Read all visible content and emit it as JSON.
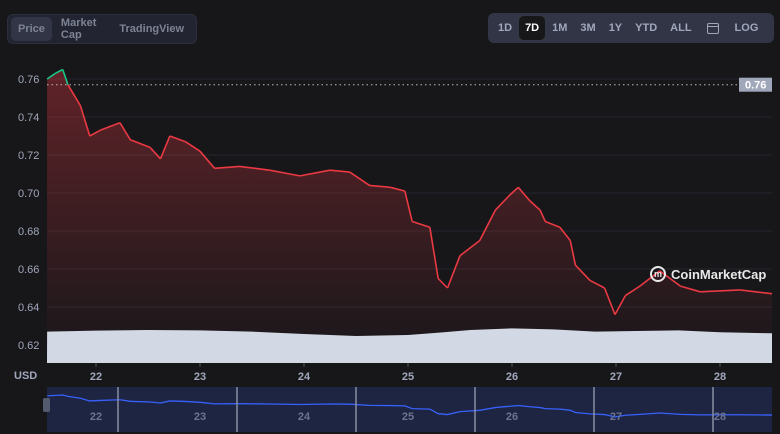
{
  "tabs": [
    {
      "label": "Price",
      "active": true
    },
    {
      "label": "Market Cap",
      "active": false
    },
    {
      "label": "TradingView",
      "active": false
    }
  ],
  "ranges": [
    {
      "label": "1D"
    },
    {
      "label": "7D",
      "active": true
    },
    {
      "label": "1M"
    },
    {
      "label": "3M"
    },
    {
      "label": "1Y"
    },
    {
      "label": "YTD"
    },
    {
      "label": "ALL"
    }
  ],
  "calendar_icon": "calendar-icon",
  "log_label": "LOG",
  "watermark": "CoinMarketCap",
  "currency_label": "USD",
  "current_price_label": "0.76",
  "colors": {
    "up": "#16c784",
    "down": "#ea3943",
    "volume": "#d3d9e4",
    "navigator": "#3861fb"
  },
  "chart_data": {
    "type": "line",
    "ylabel": "USD",
    "yticks": [
      "0.62",
      "0.64",
      "0.66",
      "0.68",
      "0.70",
      "0.72",
      "0.74",
      "0.76"
    ],
    "ylim": [
      0.615,
      0.765
    ],
    "xticks": [
      "22",
      "23",
      "24",
      "25",
      "26",
      "27",
      "28"
    ],
    "xlim": [
      21.53,
      28.5
    ],
    "grid": true,
    "reference_line": 0.757,
    "series": [
      {
        "x": [
          21.53,
          21.61,
          21.68,
          21.73,
          21.85,
          21.94,
          22.04,
          22.23,
          22.33,
          22.52,
          22.62,
          22.71,
          22.86,
          23.0,
          23.14,
          23.38,
          23.67,
          23.96,
          24.25,
          24.44,
          24.63,
          24.83,
          24.97,
          25.04,
          25.21,
          25.29,
          25.38,
          25.5,
          25.69,
          25.84,
          25.98,
          26.06,
          26.17,
          26.27,
          26.32,
          26.46,
          26.56,
          26.61,
          26.75,
          26.89,
          26.99,
          27.09,
          27.23,
          27.42,
          27.62,
          27.81,
          28.19,
          28.5
        ],
        "y": [
          0.76,
          0.763,
          0.765,
          0.757,
          0.746,
          0.73,
          0.733,
          0.737,
          0.728,
          0.724,
          0.718,
          0.73,
          0.727,
          0.722,
          0.713,
          0.714,
          0.712,
          0.709,
          0.712,
          0.711,
          0.704,
          0.703,
          0.701,
          0.685,
          0.682,
          0.655,
          0.65,
          0.667,
          0.675,
          0.691,
          0.699,
          0.703,
          0.696,
          0.691,
          0.685,
          0.682,
          0.675,
          0.662,
          0.654,
          0.65,
          0.636,
          0.646,
          0.651,
          0.659,
          0.651,
          0.648,
          0.649,
          0.647
        ]
      }
    ],
    "volume_relative": {
      "x": [
        21.53,
        22.0,
        22.5,
        23.0,
        23.5,
        24.0,
        24.5,
        25.0,
        25.3,
        25.6,
        26.0,
        26.4,
        26.8,
        27.2,
        27.6,
        28.0,
        28.5
      ],
      "y": [
        0.95,
        0.98,
        1.0,
        0.99,
        0.95,
        0.88,
        0.82,
        0.85,
        0.92,
        1.0,
        1.05,
        1.02,
        0.95,
        0.97,
        0.99,
        0.93,
        0.9
      ]
    }
  }
}
